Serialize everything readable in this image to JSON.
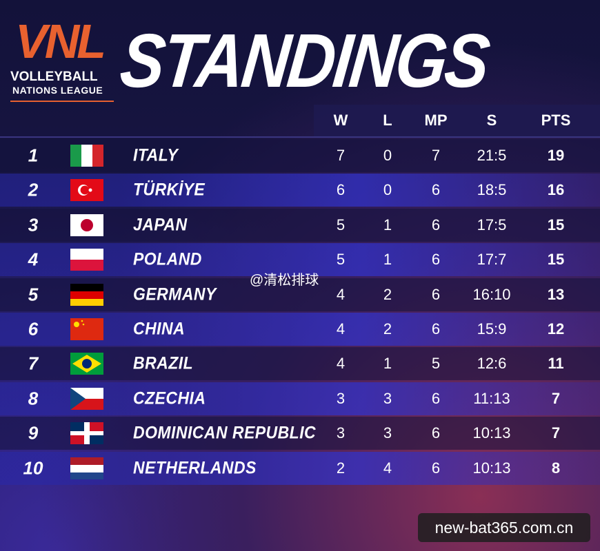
{
  "logo": {
    "mark": "VNL",
    "line1": "VOLLEYBALL",
    "line2": "NATIONS LEAGUE"
  },
  "title": "STANDINGS",
  "table": {
    "headers": [
      "W",
      "L",
      "MP",
      "S",
      "PTS"
    ],
    "rows": [
      {
        "rank": 1,
        "team": "ITALY",
        "w": 7,
        "l": 0,
        "mp": 7,
        "s": "21:5",
        "pts": 19
      },
      {
        "rank": 2,
        "team": "TÜRKİYE",
        "w": 6,
        "l": 0,
        "mp": 6,
        "s": "18:5",
        "pts": 16
      },
      {
        "rank": 3,
        "team": "JAPAN",
        "w": 5,
        "l": 1,
        "mp": 6,
        "s": "17:5",
        "pts": 15
      },
      {
        "rank": 4,
        "team": "POLAND",
        "w": 5,
        "l": 1,
        "mp": 6,
        "s": "17:7",
        "pts": 15
      },
      {
        "rank": 5,
        "team": "GERMANY",
        "w": 4,
        "l": 2,
        "mp": 6,
        "s": "16:10",
        "pts": 13
      },
      {
        "rank": 6,
        "team": "CHINA",
        "w": 4,
        "l": 2,
        "mp": 6,
        "s": "15:9",
        "pts": 12
      },
      {
        "rank": 7,
        "team": "BRAZIL",
        "w": 4,
        "l": 1,
        "mp": 5,
        "s": "12:6",
        "pts": 11
      },
      {
        "rank": 8,
        "team": "CZECHIA",
        "w": 3,
        "l": 3,
        "mp": 6,
        "s": "11:13",
        "pts": 7
      },
      {
        "rank": 9,
        "team": "DOMINICAN REPUBLIC",
        "w": 3,
        "l": 3,
        "mp": 6,
        "s": "10:13",
        "pts": 7
      },
      {
        "rank": 10,
        "team": "NETHERLANDS",
        "w": 2,
        "l": 4,
        "mp": 6,
        "s": "10:13",
        "pts": 8
      }
    ]
  },
  "watermarks": {
    "weibo": "@清松排球",
    "site": "new-bat365.com.cn"
  }
}
